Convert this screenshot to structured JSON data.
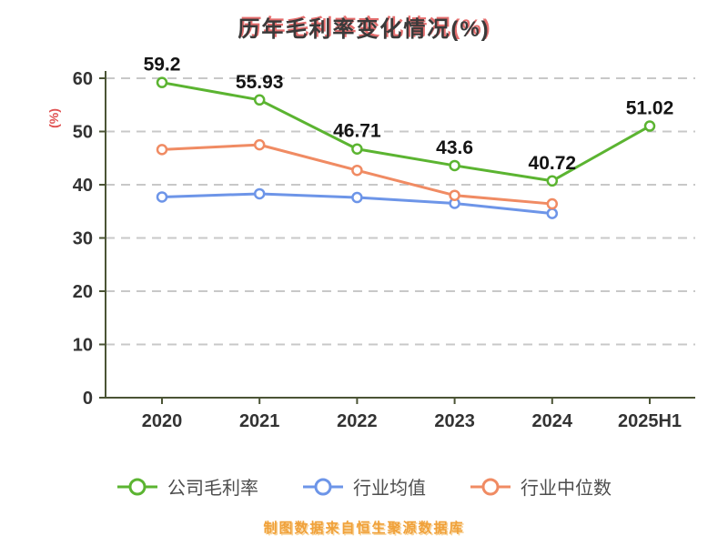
{
  "title": "历年毛利率变化情况(%)",
  "footer_note": "制图数据来自恒生聚源数据库",
  "colors": {
    "company": "#5bb431",
    "industry_avg": "#6d95e8",
    "industry_median": "#f08b63",
    "axis": "#4b5435",
    "grid": "#c8c8c8",
    "tick_label": "#333333",
    "value_label": "#141414",
    "y_axis_title": "#e05252"
  },
  "chart_data": {
    "type": "line",
    "title": "历年毛利率变化情况(%)",
    "categories": [
      "2020",
      "2021",
      "2022",
      "2023",
      "2024",
      "2025H1"
    ],
    "series": [
      {
        "name": "公司毛利率",
        "color_key": "company",
        "values": [
          59.2,
          55.93,
          46.71,
          43.6,
          40.72,
          51.02
        ],
        "point_labels": [
          "59.2",
          "55.93",
          "46.71",
          "43.6",
          "40.72",
          "51.02"
        ]
      },
      {
        "name": "行业均值",
        "color_key": "industry_avg",
        "values": [
          37.7,
          38.3,
          37.6,
          36.5,
          34.6,
          null
        ]
      },
      {
        "name": "行业中位数",
        "color_key": "industry_median",
        "values": [
          46.6,
          47.5,
          42.7,
          38.0,
          36.4,
          null
        ]
      }
    ],
    "ylabel": "(%)",
    "ylim": [
      0,
      60
    ],
    "ytick_step": 10,
    "grid": "horizontal-dashed",
    "legend_position": "bottom",
    "source_note": "制图数据来自恒生聚源数据库"
  }
}
